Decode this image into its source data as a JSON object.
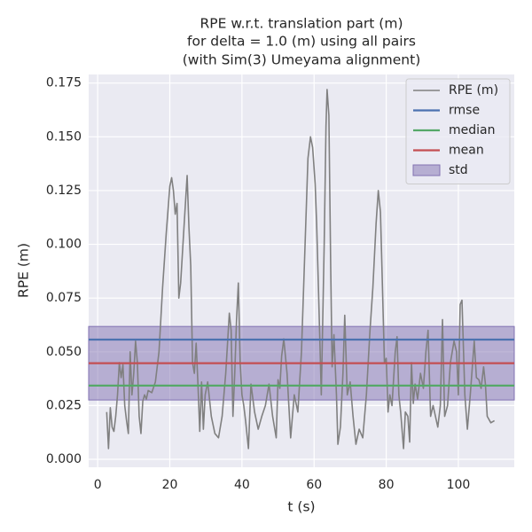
{
  "chart_data": {
    "type": "line",
    "title": [
      "RPE w.r.t. translation part (m)",
      "for delta = 1.0 (m) using all pairs",
      "(with Sim(3) Umeyama alignment)"
    ],
    "x_label": "t (s)",
    "y_label": "RPE (m)",
    "xlim": [
      -2.5,
      115.5
    ],
    "ylim": [
      -0.0037,
      0.179
    ],
    "xticks": [
      0,
      20,
      40,
      60,
      80,
      100
    ],
    "yticks": [
      {
        "value": 0,
        "label": "0.000"
      },
      {
        "value": 0.025,
        "label": "0.025"
      },
      {
        "value": 0.05,
        "label": "0.050"
      },
      {
        "value": 0.075,
        "label": "0.075"
      },
      {
        "value": 0.1,
        "label": "0.100"
      },
      {
        "value": 0.125,
        "label": "0.125"
      },
      {
        "value": 0.15,
        "label": "0.150"
      },
      {
        "value": 0.175,
        "label": "0.175"
      }
    ],
    "grid": true,
    "legend": "upper right",
    "series": [
      {
        "name": "RPE (m)",
        "color": "#808080",
        "x": [
          2.5,
          3,
          3.5,
          4,
          4.5,
          5,
          5.5,
          6,
          6.5,
          7,
          7.5,
          8,
          8.5,
          9,
          9.5,
          10,
          10.5,
          11,
          11.5,
          12,
          12.5,
          13,
          13.5,
          14,
          15,
          16,
          17,
          18,
          19,
          20,
          20.5,
          21,
          21.5,
          22,
          22.5,
          23,
          24,
          24.8,
          25.3,
          25.8,
          26.3,
          26.8,
          27.3,
          27.8,
          28.3,
          28.8,
          29.3,
          29.8,
          30.5,
          31.5,
          32.5,
          33.5,
          34.5,
          35.5,
          36.5,
          37,
          37.5,
          38,
          38.5,
          39,
          39.5,
          40,
          40.5,
          41,
          41.8,
          42.5,
          43.5,
          44.5,
          45.5,
          46.5,
          47.5,
          48.5,
          49.5,
          50,
          50.5,
          51,
          51.6,
          52.5,
          53.5,
          54.5,
          55.5,
          56.5,
          57.5,
          58.3,
          59,
          59.6,
          60.3,
          60.7,
          61.2,
          62,
          62.8,
          63.3,
          63.6,
          64.1,
          64.6,
          65,
          65.5,
          66.2,
          66.6,
          67.3,
          68,
          68.5,
          69.2,
          70,
          70.8,
          71.6,
          72.5,
          73.5,
          74.5,
          75.5,
          76.3,
          77.2,
          77.8,
          78.4,
          78.8,
          79.5,
          80,
          80.5,
          81,
          81.6,
          82.5,
          83,
          83.5,
          84,
          84.8,
          85.3,
          86,
          86.5,
          87,
          87.5,
          88,
          88.7,
          89.5,
          90.3,
          91,
          91.6,
          92.3,
          93,
          94.3,
          95,
          95.6,
          96.2,
          97,
          97.8,
          98.8,
          99.5,
          100,
          100.5,
          101,
          101.8,
          102.5,
          103.3,
          104.4,
          105,
          105.7,
          106.3,
          107,
          107.5,
          108,
          109,
          110
        ],
        "values": [
          0.022,
          0.005,
          0.024,
          0.015,
          0.013,
          0.02,
          0.03,
          0.045,
          0.038,
          0.044,
          0.025,
          0.018,
          0.012,
          0.05,
          0.03,
          0.04,
          0.055,
          0.045,
          0.02,
          0.012,
          0.027,
          0.03,
          0.028,
          0.032,
          0.031,
          0.036,
          0.05,
          0.08,
          0.105,
          0.127,
          0.131,
          0.125,
          0.114,
          0.119,
          0.075,
          0.082,
          0.11,
          0.132,
          0.108,
          0.09,
          0.045,
          0.04,
          0.054,
          0.035,
          0.013,
          0.036,
          0.014,
          0.03,
          0.036,
          0.02,
          0.012,
          0.01,
          0.02,
          0.04,
          0.068,
          0.06,
          0.02,
          0.04,
          0.065,
          0.082,
          0.045,
          0.03,
          0.025,
          0.018,
          0.005,
          0.035,
          0.022,
          0.014,
          0.02,
          0.025,
          0.035,
          0.02,
          0.01,
          0.037,
          0.033,
          0.048,
          0.056,
          0.04,
          0.01,
          0.03,
          0.022,
          0.05,
          0.1,
          0.14,
          0.15,
          0.145,
          0.128,
          0.11,
          0.08,
          0.03,
          0.1,
          0.155,
          0.172,
          0.16,
          0.09,
          0.043,
          0.058,
          0.03,
          0.007,
          0.015,
          0.04,
          0.067,
          0.03,
          0.036,
          0.02,
          0.007,
          0.014,
          0.01,
          0.03,
          0.06,
          0.08,
          0.11,
          0.125,
          0.115,
          0.09,
          0.045,
          0.047,
          0.022,
          0.03,
          0.025,
          0.05,
          0.057,
          0.03,
          0.022,
          0.005,
          0.022,
          0.02,
          0.008,
          0.045,
          0.026,
          0.035,
          0.028,
          0.04,
          0.033,
          0.05,
          0.06,
          0.02,
          0.025,
          0.015,
          0.025,
          0.065,
          0.02,
          0.025,
          0.045,
          0.055,
          0.05,
          0.03,
          0.072,
          0.074,
          0.03,
          0.014,
          0.03,
          0.055,
          0.038,
          0.037,
          0.033,
          0.043,
          0.035,
          0.02,
          0.017,
          0.018
        ]
      }
    ],
    "hlines": [
      {
        "name": "rmse",
        "color": "#4c72b0",
        "value": 0.0557
      },
      {
        "name": "median",
        "color": "#55a868",
        "value": 0.0343
      },
      {
        "name": "mean",
        "color": "#c44e52",
        "value": 0.0447
      }
    ],
    "band": {
      "name": "std",
      "color": "#8172b2",
      "value": 0.0171
    }
  }
}
